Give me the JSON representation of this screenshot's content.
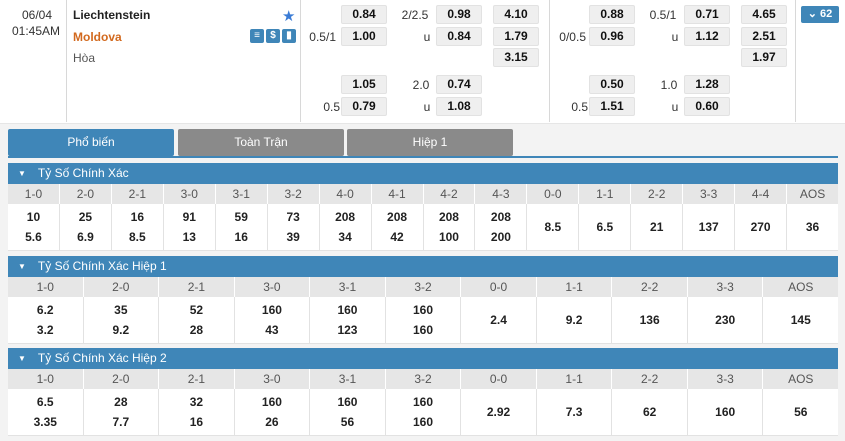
{
  "match": {
    "date": "06/04",
    "time": "01:45AM",
    "home": "Liechtenstein",
    "away": "Moldova",
    "draw": "Hòa",
    "star_icon": "star-icon",
    "more_count": "62",
    "ft": {
      "row1": {
        "hcp_home": "",
        "o1": "0.84",
        "ou_line": "2/2.5",
        "o2": "0.98",
        "x12": "4.10"
      },
      "row2": {
        "hcp_home": "0.5/1",
        "o1": "1.00",
        "ou_line": "u",
        "o2": "0.84",
        "x12": "1.79"
      },
      "row3": {
        "x12": "3.15"
      },
      "row4": {
        "hcp_home": "",
        "o1": "1.05",
        "ou_line": "2.0",
        "o2": "0.74"
      },
      "row5": {
        "hcp_home": "0.5",
        "o1": "0.79",
        "ou_line": "u",
        "o2": "1.08"
      }
    },
    "h1": {
      "row1": {
        "hcp_home": "",
        "o1": "0.88",
        "ou_line": "0.5/1",
        "o2": "0.71",
        "x12": "4.65"
      },
      "row2": {
        "hcp_home": "0/0.5",
        "o1": "0.96",
        "ou_line": "u",
        "o2": "1.12",
        "x12": "2.51"
      },
      "row3": {
        "x12": "1.97"
      },
      "row4": {
        "hcp_home": "",
        "o1": "0.50",
        "ou_line": "1.0",
        "o2": "1.28"
      },
      "row5": {
        "hcp_home": "0.5",
        "o1": "1.51",
        "ou_line": "u",
        "o2": "0.60"
      }
    }
  },
  "tabs": [
    "Phổ biến",
    "Toàn Trận",
    "Hiệp 1"
  ],
  "sections": [
    {
      "title": "Tỷ Số Chính Xác",
      "headers": [
        "1-0",
        "2-0",
        "2-1",
        "3-0",
        "3-1",
        "3-2",
        "4-0",
        "4-1",
        "4-2",
        "4-3",
        "0-0",
        "1-1",
        "2-2",
        "3-3",
        "4-4",
        "AOS"
      ],
      "top": [
        "10",
        "25",
        "16",
        "91",
        "59",
        "73",
        "208",
        "208",
        "208",
        "208",
        "8.5",
        "6.5",
        "21",
        "137",
        "270",
        "36"
      ],
      "bottom": [
        "5.6",
        "6.9",
        "8.5",
        "13",
        "16",
        "39",
        "34",
        "42",
        "100",
        "200",
        "",
        "",
        "",
        "",
        "",
        ""
      ]
    },
    {
      "title": "Tỷ Số Chính Xác Hiệp 1",
      "headers": [
        "1-0",
        "2-0",
        "2-1",
        "3-0",
        "3-1",
        "3-2",
        "0-0",
        "1-1",
        "2-2",
        "3-3",
        "AOS"
      ],
      "top": [
        "6.2",
        "35",
        "52",
        "160",
        "160",
        "160",
        "2.4",
        "9.2",
        "136",
        "230",
        "145"
      ],
      "bottom": [
        "3.2",
        "9.2",
        "28",
        "43",
        "123",
        "160",
        "",
        "",
        "",
        "",
        ""
      ]
    },
    {
      "title": "Tỷ Số Chính Xác Hiệp 2",
      "headers": [
        "1-0",
        "2-0",
        "2-1",
        "3-0",
        "3-1",
        "3-2",
        "0-0",
        "1-1",
        "2-2",
        "3-3",
        "AOS"
      ],
      "top": [
        "6.5",
        "28",
        "32",
        "160",
        "160",
        "160",
        "2.92",
        "7.3",
        "62",
        "160",
        "56"
      ],
      "bottom": [
        "3.35",
        "7.7",
        "16",
        "26",
        "56",
        "160",
        "",
        "",
        "",
        "",
        ""
      ]
    }
  ],
  "colors": {
    "accent": "#3f86b8",
    "away_team": "#d2691e",
    "tab_inactive": "#8a8a8a"
  }
}
